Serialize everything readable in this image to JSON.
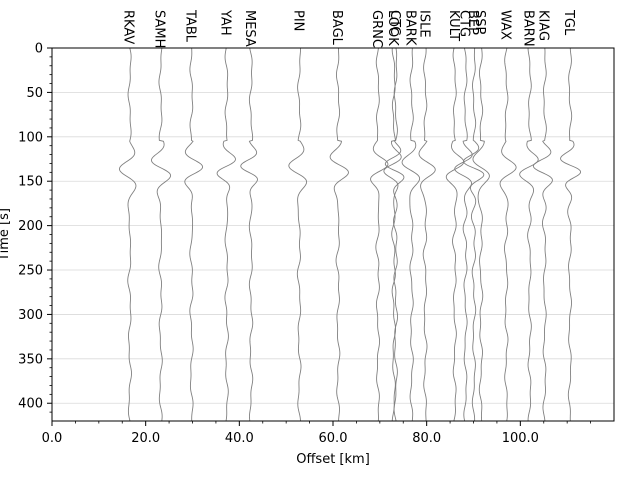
{
  "chart_data": {
    "type": "line",
    "title": "",
    "xlabel": "Offset [km]",
    "ylabel": "Time [s]",
    "xlim": [
      0,
      120
    ],
    "ylim": [
      420,
      0
    ],
    "y_inverted": true,
    "grid": "horizontal",
    "x_ticks": [
      0,
      20,
      40,
      60,
      80,
      100
    ],
    "x_tick_labels": [
      "0.0",
      "20.0",
      "40.0",
      "60.0",
      "80.0",
      "100.0"
    ],
    "y_ticks": [
      0,
      50,
      100,
      150,
      200,
      250,
      300,
      350,
      400
    ],
    "y_tick_labels": [
      "0",
      "50",
      "100",
      "150",
      "200",
      "250",
      "300",
      "350",
      "400"
    ],
    "trace_color": "#808080",
    "arrival_time_s": 105,
    "stations": [
      {
        "name": "RKAV",
        "offset_km": 16.6
      },
      {
        "name": "SAMH",
        "offset_km": 23.2
      },
      {
        "name": "TABL",
        "offset_km": 29.8
      },
      {
        "name": "YAH",
        "offset_km": 37.3
      },
      {
        "name": "MESA",
        "offset_km": 42.5
      },
      {
        "name": "PIN",
        "offset_km": 52.8
      },
      {
        "name": "BAGL",
        "offset_km": 61.1
      },
      {
        "name": "GRNC",
        "offset_km": 69.6
      },
      {
        "name": "LOOK",
        "offset_km": 73.0
      },
      {
        "name": "CTC",
        "offset_km": 73.4
      },
      {
        "name": "BARK",
        "offset_km": 76.8
      },
      {
        "name": "ISLE",
        "offset_km": 79.7
      },
      {
        "name": "KULT",
        "offset_km": 86.0
      },
      {
        "name": "CTG",
        "offset_km": 88.3
      },
      {
        "name": "BEP",
        "offset_km": 90.1
      },
      {
        "name": "SSP",
        "offset_km": 91.6
      },
      {
        "name": "WAX",
        "offset_km": 97.0
      },
      {
        "name": "BARN",
        "offset_km": 102.0
      },
      {
        "name": "KIAG",
        "offset_km": 105.2
      },
      {
        "name": "TGL",
        "offset_km": 110.6
      }
    ]
  }
}
